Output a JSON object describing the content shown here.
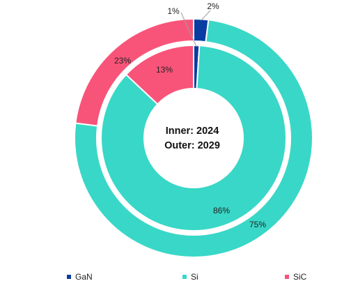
{
  "chart_data": {
    "type": "pie",
    "subtype": "nested-donut",
    "center_labels": [
      "Inner: 2024",
      "Outer: 2029"
    ],
    "categories": [
      "GaN",
      "Si",
      "SiC"
    ],
    "colors": [
      "#0a3da1",
      "#39d7c7",
      "#f85479"
    ],
    "series": [
      {
        "values": [
          1,
          86,
          13
        ],
        "labels": [
          "1%",
          "86%",
          "13%"
        ]
      },
      {
        "values": [
          2,
          75,
          23
        ],
        "labels": [
          "2%",
          "75%",
          "23%"
        ]
      }
    ],
    "legend": {
      "position": "bottom"
    }
  }
}
